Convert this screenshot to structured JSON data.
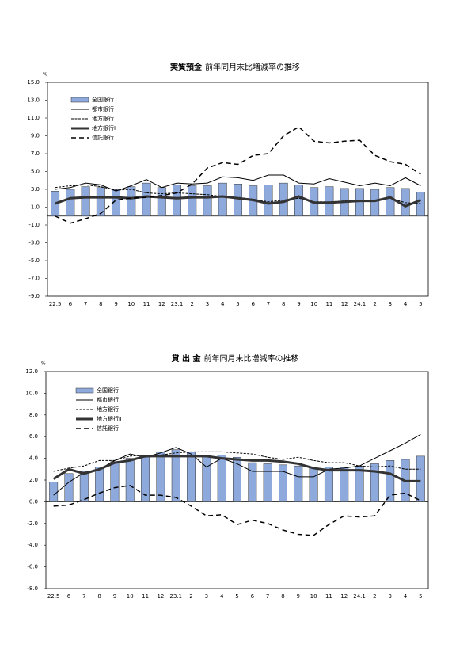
{
  "chart_data": [
    {
      "type": "combo",
      "title": "実質預金",
      "subtitle": "前年同月末比増減率の推移",
      "y_unit": "%",
      "categories": [
        "22.5",
        "6",
        "7",
        "8",
        "9",
        "10",
        "11",
        "12",
        "23.1",
        "2",
        "3",
        "4",
        "5",
        "6",
        "7",
        "8",
        "9",
        "10",
        "11",
        "12",
        "24.1",
        "2",
        "3",
        "4",
        "5"
      ],
      "ylim": [
        -9,
        15
      ],
      "yticks": [
        {
          "value": 15,
          "label": "15.0"
        },
        {
          "value": 13,
          "label": "13.0"
        },
        {
          "value": 11,
          "label": "11.0"
        },
        {
          "value": 9,
          "label": "9.0"
        },
        {
          "value": 7,
          "label": "7.0"
        },
        {
          "value": 5,
          "label": "5.0"
        },
        {
          "value": 3,
          "label": "3.0"
        },
        {
          "value": 1,
          "label": "1.0"
        },
        {
          "value": -1,
          "label": "-1.0"
        },
        {
          "value": -3,
          "label": "-3.0"
        },
        {
          "value": -5,
          "label": "-5.0"
        },
        {
          "value": -7,
          "label": "-7.0"
        },
        {
          "value": -9,
          "label": "-9.0"
        }
      ],
      "series": [
        {
          "name": "全国銀行",
          "kind": "bar",
          "color": "#8ea9db",
          "values": [
            2.8,
            3.0,
            3.3,
            3.2,
            3.0,
            3.3,
            3.7,
            3.2,
            3.5,
            3.4,
            3.4,
            3.7,
            3.6,
            3.4,
            3.5,
            3.7,
            3.5,
            3.2,
            3.3,
            3.1,
            3.1,
            3.0,
            3.2,
            3.1,
            2.7
          ]
        },
        {
          "name": "都市銀行",
          "kind": "line",
          "line_style": "solid",
          "color": "#000000",
          "values": [
            3.0,
            3.2,
            3.7,
            3.5,
            2.8,
            3.4,
            4.1,
            3.2,
            3.7,
            3.6,
            3.7,
            4.4,
            4.3,
            4.0,
            4.6,
            4.6,
            3.7,
            3.6,
            4.2,
            3.8,
            3.4,
            3.7,
            3.4,
            4.3,
            3.4
          ]
        },
        {
          "name": "地方銀行",
          "kind": "line",
          "line_style": "dotted",
          "color": "#000000",
          "values": [
            3.2,
            3.4,
            3.5,
            3.3,
            2.9,
            3.0,
            2.6,
            2.5,
            2.6,
            2.5,
            2.4,
            2.2,
            2.1,
            1.9,
            1.6,
            1.8,
            2.0,
            1.6,
            1.6,
            1.7,
            1.8,
            1.8,
            2.0,
            1.5,
            1.4
          ]
        },
        {
          "name": "地方銀行Ⅱ",
          "kind": "line",
          "line_style": "thick",
          "color": "#333333",
          "values": [
            1.4,
            2.0,
            2.1,
            2.1,
            2.1,
            2.0,
            2.2,
            2.1,
            2.0,
            2.1,
            2.1,
            2.2,
            2.0,
            1.8,
            1.4,
            1.6,
            2.2,
            1.5,
            1.5,
            1.6,
            1.7,
            1.7,
            2.1,
            1.1,
            1.8
          ]
        },
        {
          "name": "信託銀行",
          "kind": "line",
          "line_style": "dashed",
          "color": "#000000",
          "values": [
            0.0,
            -0.8,
            -0.3,
            0.3,
            1.8,
            2.0,
            2.1,
            2.3,
            2.6,
            3.6,
            5.4,
            6.0,
            5.8,
            6.8,
            7.0,
            9.0,
            10.0,
            8.4,
            8.2,
            8.4,
            8.5,
            6.8,
            6.1,
            5.8,
            4.7
          ]
        }
      ]
    },
    {
      "type": "combo",
      "title": "貸 出 金",
      "subtitle": "前年同月末比増減率の推移",
      "y_unit": "%",
      "categories": [
        "22.5",
        "6",
        "7",
        "8",
        "9",
        "10",
        "11",
        "12",
        "23.1",
        "2",
        "3",
        "4",
        "5",
        "6",
        "7",
        "8",
        "9",
        "10",
        "11",
        "12",
        "24.1",
        "2",
        "3",
        "4",
        "5"
      ],
      "ylim": [
        -8,
        12
      ],
      "yticks": [
        {
          "value": 12,
          "label": "12.0"
        },
        {
          "value": 10,
          "label": "10.0"
        },
        {
          "value": 8,
          "label": "8.0"
        },
        {
          "value": 6,
          "label": "6.0"
        },
        {
          "value": 4,
          "label": "4.0"
        },
        {
          "value": 2,
          "label": "2.0"
        },
        {
          "value": 0,
          "label": "0.0"
        },
        {
          "value": -2,
          "label": "-2.0"
        },
        {
          "value": -4,
          "label": "-4.0"
        },
        {
          "value": -6,
          "label": "-6.0"
        },
        {
          "value": -8,
          "label": "-8.0"
        }
      ],
      "series": [
        {
          "name": "全国銀行",
          "kind": "bar",
          "color": "#8ea9db",
          "values": [
            1.8,
            2.6,
            2.8,
            3.2,
            3.7,
            4.0,
            4.3,
            4.6,
            4.8,
            4.6,
            4.2,
            4.3,
            4.1,
            3.6,
            3.5,
            3.4,
            3.3,
            3.1,
            3.2,
            3.2,
            3.3,
            3.5,
            3.8,
            3.9,
            4.2
          ]
        },
        {
          "name": "都市銀行",
          "kind": "line",
          "line_style": "solid",
          "color": "#000000",
          "values": [
            0.6,
            1.8,
            2.7,
            3.0,
            3.8,
            4.4,
            4.1,
            4.5,
            5.0,
            4.4,
            3.2,
            4.0,
            3.5,
            2.8,
            2.8,
            2.8,
            2.3,
            2.3,
            3.0,
            3.1,
            3.3,
            4.0,
            4.7,
            5.4,
            6.2
          ]
        },
        {
          "name": "地方銀行",
          "kind": "line",
          "line_style": "dotted",
          "color": "#000000",
          "values": [
            2.8,
            3.1,
            3.3,
            3.8,
            3.8,
            4.2,
            4.3,
            4.3,
            4.5,
            4.6,
            4.6,
            4.6,
            4.5,
            4.4,
            4.1,
            3.9,
            4.1,
            3.8,
            3.6,
            3.6,
            3.3,
            3.2,
            3.3,
            3.0,
            3.0
          ]
        },
        {
          "name": "地方銀行Ⅱ",
          "kind": "line",
          "line_style": "thick",
          "color": "#333333",
          "values": [
            2.1,
            3.0,
            2.6,
            3.0,
            3.6,
            3.8,
            4.2,
            4.2,
            4.2,
            4.2,
            4.2,
            4.0,
            3.9,
            3.8,
            3.8,
            3.7,
            3.5,
            3.1,
            2.9,
            2.9,
            2.9,
            2.8,
            2.6,
            1.9,
            1.9
          ]
        },
        {
          "name": "信託銀行",
          "kind": "line",
          "line_style": "dashed",
          "color": "#000000",
          "values": [
            -0.4,
            -0.3,
            0.2,
            0.8,
            1.3,
            1.5,
            0.6,
            0.6,
            0.4,
            -0.4,
            -1.3,
            -1.2,
            -2.1,
            -1.7,
            -2.0,
            -2.6,
            -3.0,
            -3.1,
            -2.1,
            -1.3,
            -1.4,
            -1.3,
            0.6,
            0.8,
            0.1
          ]
        }
      ]
    }
  ]
}
